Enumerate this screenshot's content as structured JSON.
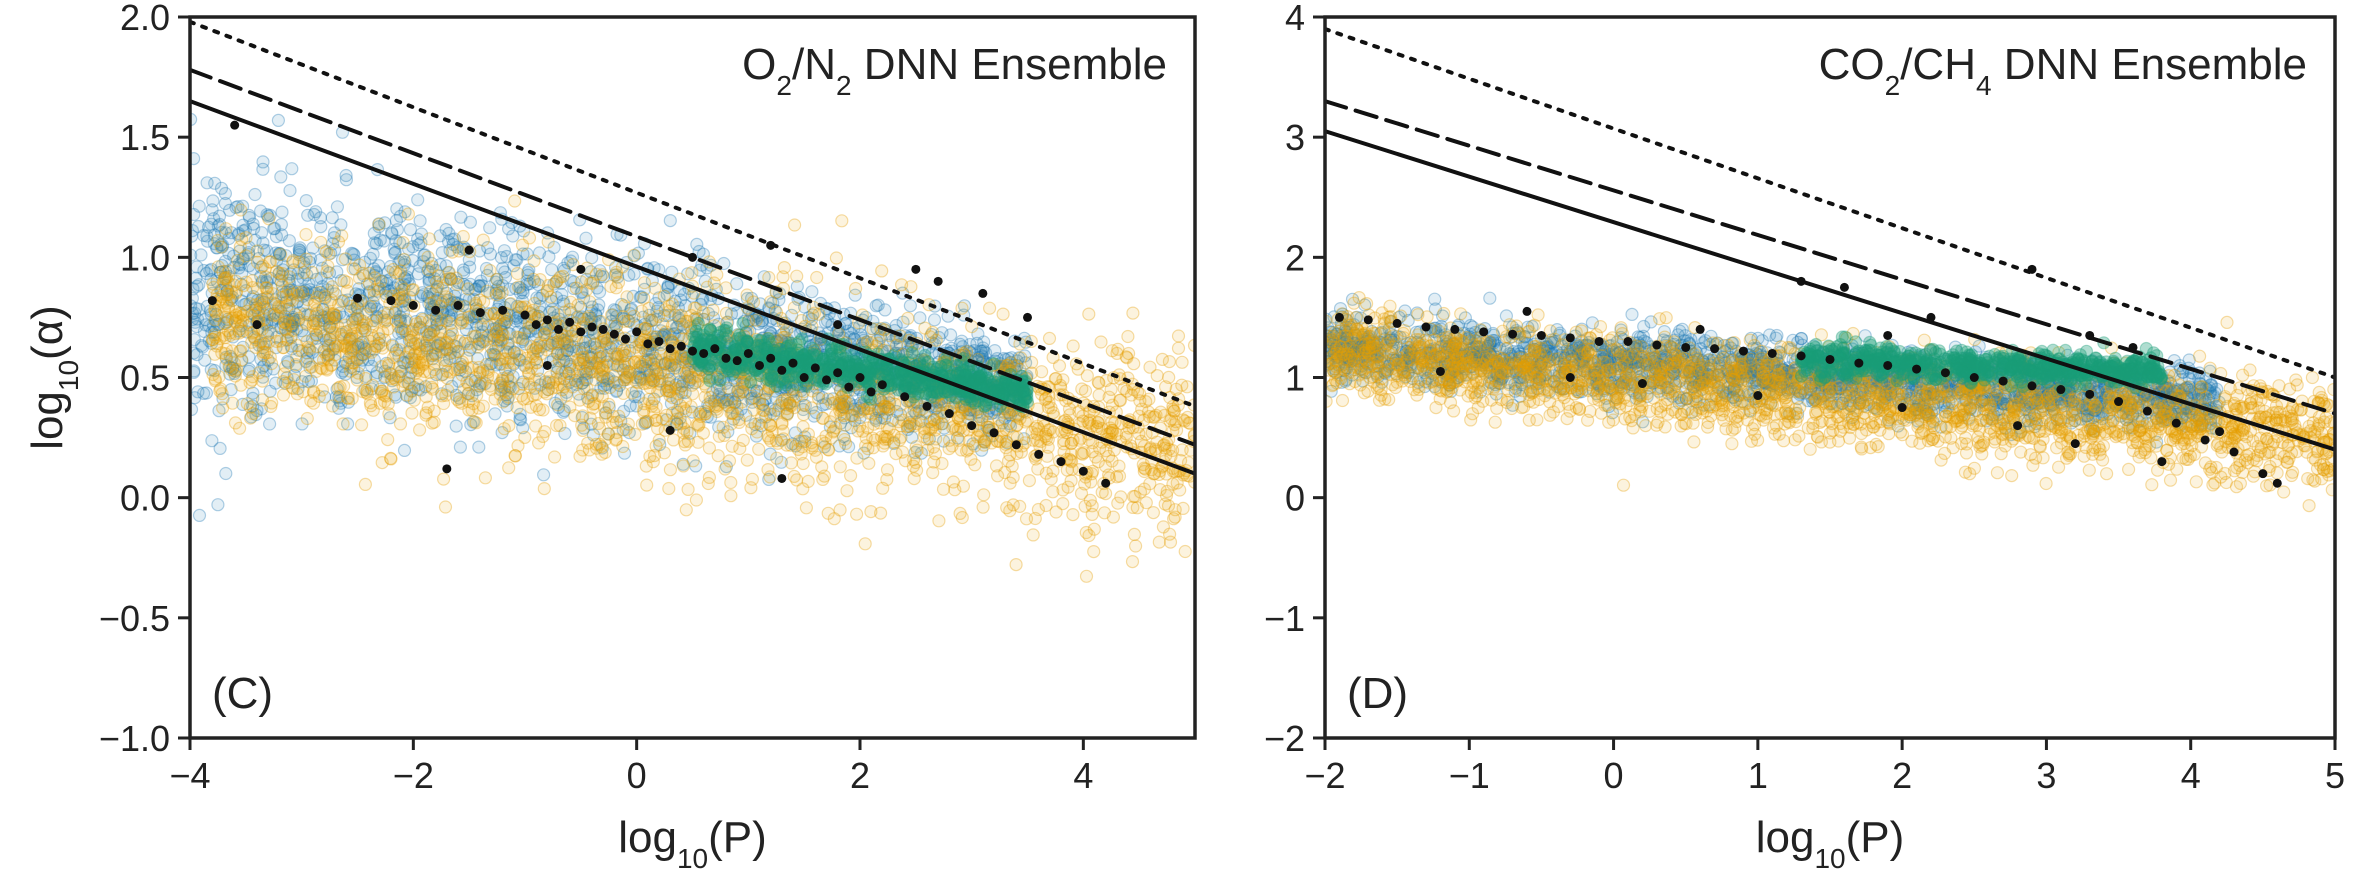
{
  "colors": {
    "axis": "#222222",
    "blue_cloud": "#1f78b4",
    "orange_cloud": "#e69f00",
    "green_cloud": "#1b9e77",
    "experimental_points": "#111111"
  },
  "chart_data": [
    {
      "type": "scatter",
      "panel_label": "(C)",
      "title_main": "O",
      "title_sub1": "2",
      "title_mid": "/N",
      "title_sub2": "2",
      "title_tail": " DNN Ensemble",
      "xlabel_main": "log",
      "xlabel_sub": "10",
      "xlabel_tail": "(P)",
      "ylabel_main": "log",
      "ylabel_sub": "10",
      "ylabel_tail": "(α)",
      "xlim": [
        -4,
        5
      ],
      "ylim": [
        -1.0,
        2.0
      ],
      "xticks": [
        -4,
        -2,
        0,
        2,
        4
      ],
      "xtick_labels": [
        "−4",
        "−2",
        "0",
        "2",
        "4"
      ],
      "yticks": [
        -1.0,
        -0.5,
        0.0,
        0.5,
        1.0,
        1.5,
        2.0
      ],
      "ytick_labels": [
        "−1.0",
        "−0.5",
        "0.0",
        "0.5",
        "1.0",
        "1.5",
        "2.0"
      ],
      "upper_bounds": [
        {
          "style": "solid",
          "x": [
            -4,
            5
          ],
          "y": [
            1.65,
            0.1
          ]
        },
        {
          "style": "dashed",
          "x": [
            -4,
            5
          ],
          "y": [
            1.78,
            0.22
          ]
        },
        {
          "style": "dotted",
          "x": [
            -4,
            5
          ],
          "y": [
            1.98,
            0.38
          ]
        }
      ],
      "clouds": [
        {
          "color": "blue",
          "x_range": [
            -4,
            3.5
          ],
          "center_start": 0.85,
          "center_end": 0.45,
          "spread_start": 0.38,
          "spread_end": 0.14
        },
        {
          "color": "orange",
          "x_range": [
            -3.8,
            5
          ],
          "center_start": 0.75,
          "center_end": 0.22,
          "spread_start": 0.28,
          "spread_end": 0.28
        },
        {
          "color": "green",
          "x_range": [
            0.5,
            3.5
          ],
          "center_start": 0.62,
          "center_end": 0.44,
          "spread_start": 0.07,
          "spread_end": 0.05
        }
      ],
      "experimental_points": [
        [
          -3.6,
          1.55
        ],
        [
          -3.8,
          0.82
        ],
        [
          -3.4,
          0.72
        ],
        [
          -2.5,
          0.83
        ],
        [
          -2.2,
          0.82
        ],
        [
          -2.0,
          0.8
        ],
        [
          -1.8,
          0.78
        ],
        [
          -1.6,
          0.8
        ],
        [
          -1.4,
          0.77
        ],
        [
          -1.2,
          0.78
        ],
        [
          -1.0,
          0.76
        ],
        [
          -0.9,
          0.72
        ],
        [
          -0.8,
          0.74
        ],
        [
          -0.7,
          0.7
        ],
        [
          -0.6,
          0.73
        ],
        [
          -0.5,
          0.69
        ],
        [
          -0.4,
          0.71
        ],
        [
          -0.3,
          0.7
        ],
        [
          -0.2,
          0.68
        ],
        [
          -0.1,
          0.66
        ],
        [
          0.0,
          0.69
        ],
        [
          0.1,
          0.64
        ],
        [
          0.2,
          0.65
        ],
        [
          0.3,
          0.62
        ],
        [
          0.4,
          0.63
        ],
        [
          0.5,
          0.61
        ],
        [
          0.6,
          0.6
        ],
        [
          0.7,
          0.62
        ],
        [
          0.8,
          0.58
        ],
        [
          0.9,
          0.57
        ],
        [
          1.0,
          0.6
        ],
        [
          1.1,
          0.55
        ],
        [
          1.2,
          0.58
        ],
        [
          1.3,
          0.53
        ],
        [
          1.4,
          0.56
        ],
        [
          1.5,
          0.5
        ],
        [
          1.6,
          0.54
        ],
        [
          1.7,
          0.49
        ],
        [
          1.8,
          0.52
        ],
        [
          1.9,
          0.46
        ],
        [
          2.0,
          0.5
        ],
        [
          2.1,
          0.44
        ],
        [
          2.2,
          0.47
        ],
        [
          2.4,
          0.42
        ],
        [
          2.6,
          0.38
        ],
        [
          2.8,
          0.35
        ],
        [
          3.0,
          0.3
        ],
        [
          3.2,
          0.27
        ],
        [
          3.4,
          0.22
        ],
        [
          3.6,
          0.18
        ],
        [
          3.8,
          0.15
        ],
        [
          4.0,
          0.11
        ],
        [
          4.2,
          0.06
        ],
        [
          -1.5,
          1.03
        ],
        [
          -0.5,
          0.95
        ],
        [
          0.5,
          1.0
        ],
        [
          1.2,
          1.05
        ],
        [
          2.7,
          0.9
        ],
        [
          3.1,
          0.85
        ],
        [
          -1.7,
          0.12
        ],
        [
          0.3,
          0.28
        ],
        [
          1.3,
          0.08
        ],
        [
          2.5,
          0.95
        ],
        [
          3.5,
          0.75
        ],
        [
          -0.8,
          0.55
        ],
        [
          1.8,
          0.72
        ]
      ]
    },
    {
      "type": "scatter",
      "panel_label": "(D)",
      "title_main": "CO",
      "title_sub1": "2",
      "title_mid": "/CH",
      "title_sub2": "4",
      "title_tail": " DNN Ensemble",
      "xlabel_main": "log",
      "xlabel_sub": "10",
      "xlabel_tail": "(P)",
      "xlim": [
        -2,
        5
      ],
      "ylim": [
        -2,
        4
      ],
      "xticks": [
        -2,
        -1,
        0,
        1,
        2,
        3,
        4,
        5
      ],
      "xtick_labels": [
        "−2",
        "−1",
        "0",
        "1",
        "2",
        "3",
        "4",
        "5"
      ],
      "yticks": [
        -2,
        -1,
        0,
        1,
        2,
        3,
        4
      ],
      "ytick_labels": [
        "−2",
        "−1",
        "0",
        "1",
        "2",
        "3",
        "4"
      ],
      "upper_bounds": [
        {
          "style": "solid",
          "x": [
            -2,
            5
          ],
          "y": [
            3.05,
            0.4
          ]
        },
        {
          "style": "dashed",
          "x": [
            -2,
            5
          ],
          "y": [
            3.3,
            0.7
          ]
        },
        {
          "style": "dotted",
          "x": [
            -2,
            5
          ],
          "y": [
            3.9,
            1.0
          ]
        }
      ],
      "clouds": [
        {
          "color": "blue",
          "x_range": [
            -2,
            4.2
          ],
          "center_start": 1.25,
          "center_end": 0.8,
          "spread_start": 0.2,
          "spread_end": 0.18
        },
        {
          "color": "orange",
          "x_range": [
            -2,
            5
          ],
          "center_start": 1.2,
          "center_end": 0.5,
          "spread_start": 0.25,
          "spread_end": 0.3
        },
        {
          "color": "green",
          "x_range": [
            1.3,
            3.8
          ],
          "center_start": 1.15,
          "center_end": 1.05,
          "spread_start": 0.1,
          "spread_end": 0.08
        }
      ],
      "experimental_points": [
        [
          -1.9,
          1.5
        ],
        [
          -1.7,
          1.48
        ],
        [
          -1.5,
          1.45
        ],
        [
          -1.3,
          1.42
        ],
        [
          -1.1,
          1.4
        ],
        [
          -0.9,
          1.38
        ],
        [
          -0.7,
          1.36
        ],
        [
          -0.5,
          1.35
        ],
        [
          -0.3,
          1.33
        ],
        [
          -0.1,
          1.3
        ],
        [
          0.1,
          1.3
        ],
        [
          0.3,
          1.27
        ],
        [
          0.5,
          1.25
        ],
        [
          0.7,
          1.24
        ],
        [
          0.9,
          1.22
        ],
        [
          1.1,
          1.2
        ],
        [
          1.3,
          1.18
        ],
        [
          1.5,
          1.15
        ],
        [
          1.7,
          1.12
        ],
        [
          1.9,
          1.1
        ],
        [
          2.1,
          1.07
        ],
        [
          2.3,
          1.04
        ],
        [
          2.5,
          1.0
        ],
        [
          2.7,
          0.97
        ],
        [
          2.9,
          0.93
        ],
        [
          3.1,
          0.9
        ],
        [
          3.3,
          0.86
        ],
        [
          3.5,
          0.8
        ],
        [
          3.7,
          0.72
        ],
        [
          3.9,
          0.62
        ],
        [
          4.1,
          0.48
        ],
        [
          4.3,
          0.38
        ],
        [
          4.5,
          0.2
        ],
        [
          4.6,
          0.12
        ],
        [
          -1.2,
          1.05
        ],
        [
          -0.3,
          1.0
        ],
        [
          0.6,
          1.4
        ],
        [
          1.3,
          1.8
        ],
        [
          1.6,
          1.75
        ],
        [
          2.2,
          1.5
        ],
        [
          2.9,
          1.9
        ],
        [
          3.3,
          1.35
        ],
        [
          3.6,
          1.25
        ],
        [
          -0.6,
          1.55
        ],
        [
          0.2,
          0.95
        ],
        [
          1.0,
          0.85
        ],
        [
          2.0,
          0.75
        ],
        [
          2.8,
          0.6
        ],
        [
          3.2,
          0.45
        ],
        [
          3.8,
          0.3
        ],
        [
          4.2,
          0.55
        ],
        [
          1.9,
          1.35
        ]
      ]
    }
  ]
}
